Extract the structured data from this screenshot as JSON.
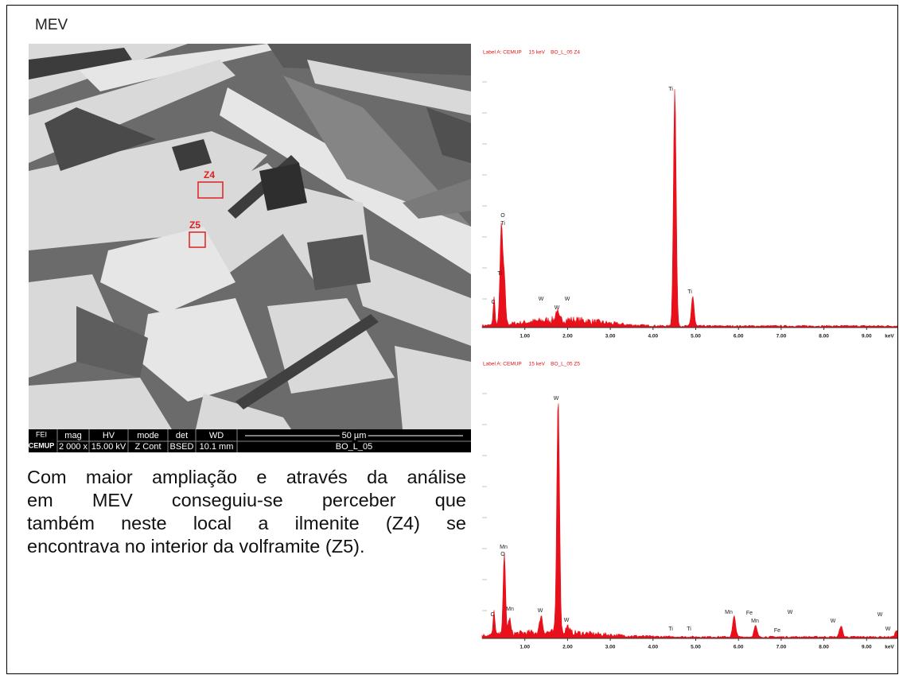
{
  "header": {
    "title": "MEV"
  },
  "sem_image": {
    "zones": [
      "Z4",
      "Z5"
    ],
    "info_bar": {
      "logo_top": "FEI",
      "logo": "CEMUP",
      "row1": [
        "mag",
        "HV",
        "mode",
        "det",
        "WD",
        "50 µm"
      ],
      "row2": [
        "2 000 x",
        "15.00 kV",
        "Z Cont",
        "BSED",
        "10.1 mm",
        "BO_L_05"
      ]
    }
  },
  "body_text": {
    "lines": [
      "Com maior ampliação e através da análise",
      "em MEV conseguiu-se perceber que",
      "também neste local a ilmenite (Z4) se",
      "encontrava no interior da volframite (Z5)."
    ]
  },
  "spectra": [
    {
      "label": "Label A: CEMUP     15 keV    BO_L_05 Z4",
      "x_labels": [
        "1.00",
        "2.00",
        "3.00",
        "4.00",
        "5.00",
        "6.00",
        "7.00",
        "8.00",
        "9.00",
        "keV"
      ],
      "peak_labels": [
        "Ti",
        "O",
        "Ti",
        "Ti",
        "C",
        "W",
        "W",
        "W",
        "Ti"
      ]
    },
    {
      "label": "Label A: CEMUP     15 keV    BO_L_05 Z5",
      "x_labels": [
        "1.00",
        "2.00",
        "3.00",
        "4.00",
        "5.00",
        "6.00",
        "7.00",
        "8.00",
        "9.00",
        "keV"
      ],
      "peak_labels": [
        "W",
        "Mn",
        "O",
        "C",
        "Mn",
        "W",
        "W",
        "Ti",
        "Ti",
        "Mn",
        "Fe",
        "Mn",
        "W",
        "Fe",
        "W",
        "W",
        "W"
      ]
    }
  ]
}
